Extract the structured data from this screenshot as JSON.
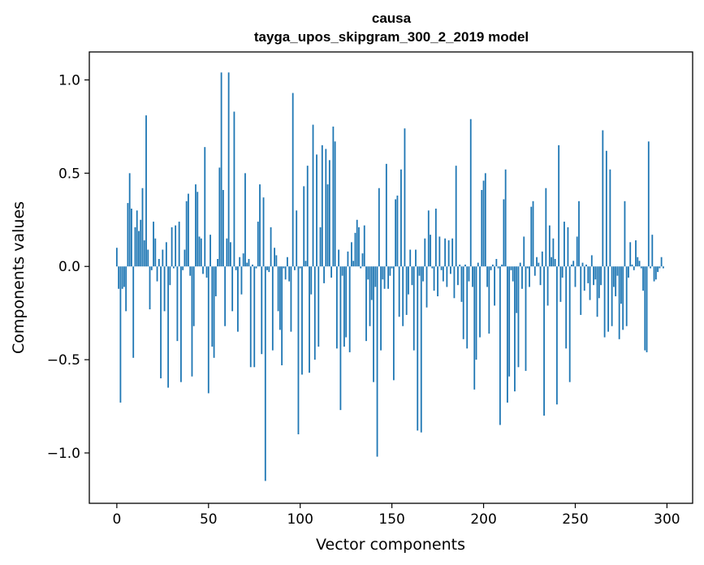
{
  "chart_data": {
    "type": "bar",
    "title": "causa",
    "subtitle": "tayga_upos_skipgram_300_2_2019 model",
    "xlabel": "Vector components",
    "ylabel": "Components values",
    "xlim": [
      -15,
      314
    ],
    "ylim": [
      -1.27,
      1.15
    ],
    "xticks": [
      0,
      50,
      100,
      150,
      200,
      250,
      300
    ],
    "yticks": [
      -1.0,
      -0.5,
      0.0,
      0.5,
      1.0
    ],
    "xtick_labels": [
      "0",
      "50",
      "100",
      "150",
      "200",
      "250",
      "300"
    ],
    "ytick_labels": [
      "−1.0",
      "−0.5",
      "0.0",
      "0.5",
      "1.0"
    ],
    "bar_color": "#1f77b4",
    "grid": false,
    "values": [
      0.1,
      -0.12,
      -0.73,
      -0.12,
      -0.11,
      -0.24,
      0.34,
      0.5,
      0.31,
      -0.49,
      0.21,
      0.3,
      0.19,
      0.25,
      0.42,
      0.14,
      0.81,
      0.09,
      -0.23,
      -0.02,
      0.24,
      0.15,
      -0.08,
      0.04,
      -0.6,
      0.09,
      -0.24,
      0.13,
      -0.65,
      -0.1,
      0.21,
      -0.01,
      0.22,
      -0.4,
      0.24,
      -0.62,
      -0.02,
      0.09,
      0.35,
      0.39,
      -0.05,
      -0.59,
      -0.32,
      0.44,
      0.4,
      0.16,
      0.15,
      -0.04,
      0.64,
      -0.06,
      -0.68,
      0.17,
      -0.43,
      -0.49,
      -0.16,
      0.04,
      0.53,
      1.04,
      0.41,
      -0.32,
      0.15,
      1.04,
      0.13,
      -0.24,
      0.83,
      -0.02,
      -0.35,
      0.05,
      -0.15,
      0.07,
      0.5,
      0.02,
      0.04,
      -0.54,
      0.01,
      -0.54,
      -0.01,
      0.24,
      0.44,
      -0.47,
      0.37,
      -1.15,
      -0.02,
      -0.03,
      0.21,
      -0.45,
      0.1,
      0.06,
      -0.24,
      -0.34,
      -0.53,
      -0.01,
      -0.07,
      0.05,
      -0.08,
      -0.35,
      0.93,
      -0.02,
      0.3,
      -0.9,
      -0.01,
      -0.58,
      0.43,
      0.03,
      0.54,
      -0.57,
      -0.15,
      0.76,
      -0.5,
      0.6,
      -0.43,
      0.21,
      0.65,
      -0.09,
      0.63,
      0.44,
      0.57,
      -0.06,
      0.75,
      0.67,
      -0.44,
      0.09,
      -0.77,
      -0.05,
      -0.43,
      -0.38,
      0.08,
      -0.46,
      0.13,
      0.03,
      0.18,
      0.25,
      0.21,
      -0.01,
      0.07,
      0.22,
      -0.4,
      -0.07,
      -0.32,
      -0.18,
      -0.62,
      -0.11,
      -1.02,
      0.42,
      -0.45,
      -0.07,
      -0.12,
      0.55,
      -0.12,
      -0.05,
      -0.01,
      -0.61,
      0.36,
      0.38,
      -0.27,
      0.52,
      -0.32,
      0.74,
      -0.26,
      -0.15,
      0.09,
      -0.1,
      -0.45,
      0.09,
      -0.88,
      -0.05,
      -0.89,
      -0.08,
      0.15,
      -0.22,
      0.3,
      0.17,
      -0.01,
      -0.13,
      0.31,
      -0.16,
      0.16,
      -0.02,
      -0.08,
      0.15,
      -0.11,
      0.14,
      -0.04,
      0.15,
      -0.17,
      0.54,
      -0.1,
      0.01,
      -0.19,
      -0.39,
      0.01,
      -0.44,
      -0.08,
      0.79,
      -0.11,
      -0.66,
      -0.5,
      0.02,
      -0.38,
      0.41,
      0.46,
      0.5,
      -0.11,
      -0.36,
      -0.02,
      0.01,
      -0.21,
      0.04,
      -0.01,
      -0.85,
      0.01,
      0.36,
      0.52,
      -0.73,
      -0.59,
      -0.02,
      -0.08,
      -0.67,
      -0.25,
      -0.54,
      0.02,
      -0.12,
      0.16,
      -0.56,
      -0.01,
      -0.11,
      0.32,
      0.35,
      -0.05,
      0.05,
      0.02,
      -0.1,
      0.08,
      -0.8,
      0.42,
      -0.21,
      0.22,
      0.05,
      0.15,
      0.04,
      -0.74,
      0.65,
      -0.19,
      -0.06,
      0.24,
      -0.44,
      0.21,
      -0.62,
      0.01,
      0.03,
      -0.11,
      0.16,
      0.35,
      -0.26,
      0.02,
      -0.13,
      0.01,
      -0.09,
      -0.18,
      0.06,
      -0.1,
      -0.07,
      -0.27,
      -0.17,
      -0.1,
      0.73,
      -0.38,
      0.62,
      -0.35,
      0.52,
      -0.32,
      -0.11,
      -0.16,
      -0.05,
      -0.39,
      -0.2,
      -0.34,
      0.35,
      -0.32,
      -0.06,
      0.13,
      0.01,
      -0.02,
      0.14,
      0.05,
      0.03,
      -0.01,
      -0.13,
      -0.45,
      -0.46,
      0.67,
      -0.01,
      0.17,
      -0.08,
      -0.07,
      -0.03,
      -0.01,
      0.05,
      -0.01
    ]
  }
}
